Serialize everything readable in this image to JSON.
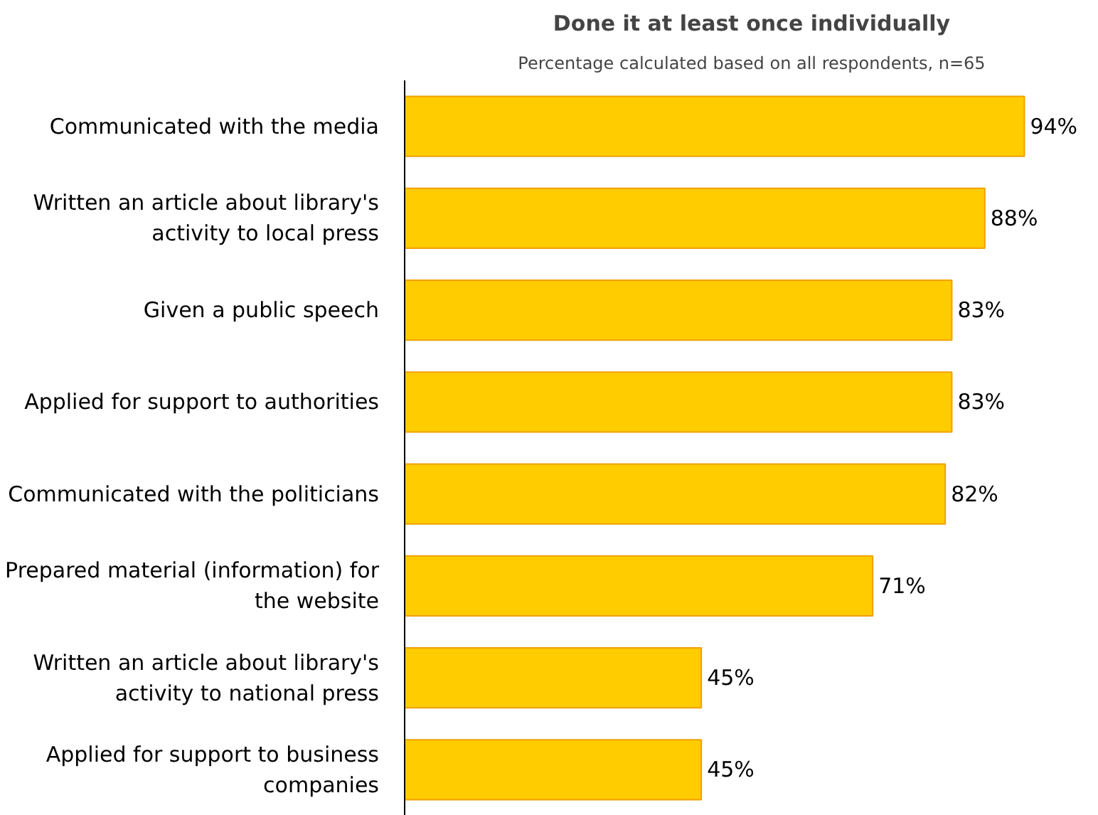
{
  "chart_data": {
    "type": "bar",
    "orientation": "horizontal",
    "title": "Done it at least once individually",
    "subtitle": "Percentage calculated based on all respondents, n=65",
    "categories": [
      "Communicated with the media",
      "Written an article about library's activity to local press",
      "Given a public speech",
      "Applied for support to authorities",
      "Communicated with the politicians",
      "Prepared material (information) for the website",
      "Written an article about library's activity to national press",
      "Applied for support to business companies"
    ],
    "values": [
      94,
      88,
      83,
      83,
      82,
      71,
      45,
      45
    ],
    "value_labels": [
      "94%",
      "88%",
      "83%",
      "83%",
      "82%",
      "71%",
      "45%",
      "45%"
    ],
    "color": "#ffcc00",
    "tick_labels": "y"
  }
}
